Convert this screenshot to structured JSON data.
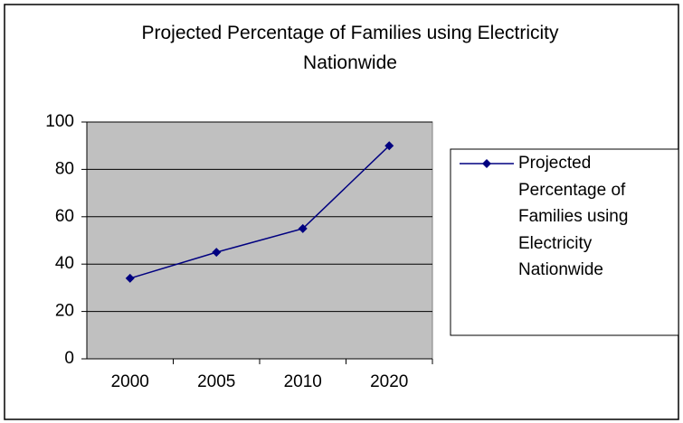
{
  "chart_data": {
    "type": "line",
    "title": "Projected Percentage of Families using Electricity Nationwide",
    "categories": [
      "2000",
      "2005",
      "2010",
      "2020"
    ],
    "series": [
      {
        "name": "Projected Percentage of Families using Electricity Nationwide",
        "color": "#000080",
        "values": [
          34,
          45,
          55,
          90
        ]
      }
    ],
    "ylim": [
      0,
      100
    ],
    "yticks": [
      0,
      20,
      40,
      60,
      80,
      100
    ],
    "grid": true,
    "plot_background": "#c0c0c0",
    "legend": "right"
  }
}
